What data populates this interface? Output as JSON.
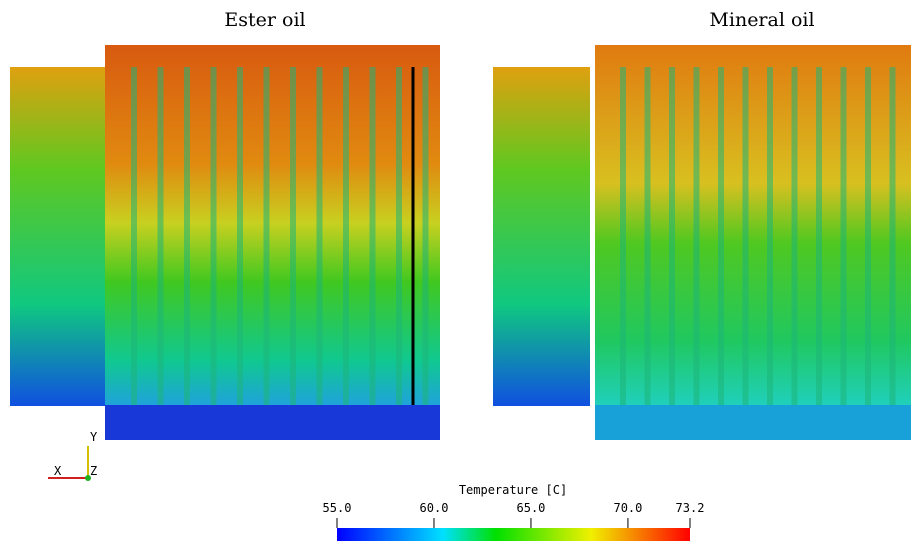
{
  "panels": [
    {
      "title": "Ester oil"
    },
    {
      "title": "Mineral oil"
    }
  ],
  "axes_triad": {
    "x": "X",
    "y": "Y",
    "z": "Z"
  },
  "colorbar": {
    "title": "Temperature  [C]",
    "range": [
      55,
      73.2
    ],
    "ticks": [
      {
        "value": 55,
        "label": "55.0"
      },
      {
        "value": 60,
        "label": "60.0"
      },
      {
        "value": 65,
        "label": "65.0"
      },
      {
        "value": 70,
        "label": "70.0"
      },
      {
        "value": 73.2,
        "label": "73.2"
      }
    ]
  }
}
